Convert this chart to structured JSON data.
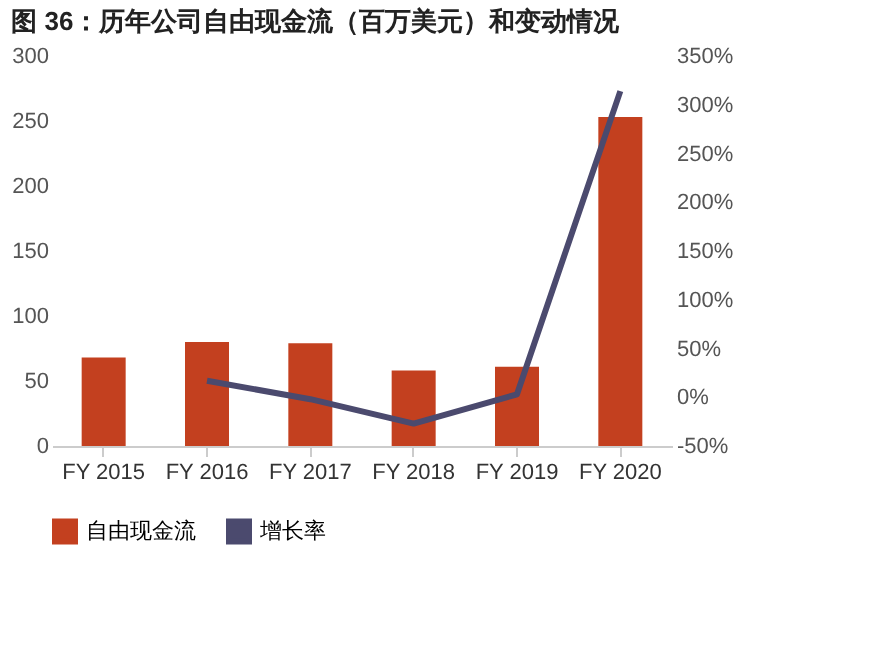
{
  "chart_data": {
    "type": "bar",
    "title": "图 36：历年公司自由现金流（百万美元）和变动情况",
    "categories": [
      "FY 2015",
      "FY 2016",
      "FY 2017",
      "FY 2018",
      "FY 2019",
      "FY 2020"
    ],
    "series": [
      {
        "name": "自由现金流",
        "type": "bar",
        "color": "#c3401f",
        "values": [
          68,
          80,
          79,
          58,
          61,
          253
        ]
      },
      {
        "name": "增长率",
        "type": "line",
        "axis": "y2",
        "color": "#4b4a6e",
        "values": [
          null,
          17,
          -2,
          -27,
          3,
          314
        ]
      }
    ],
    "ylim": [
      0,
      300
    ],
    "yticks": [
      0,
      50,
      100,
      150,
      200,
      250,
      300
    ],
    "y2lim": [
      -50,
      350
    ],
    "y2ticks": [
      {
        "value": -50,
        "label": "-50%"
      },
      {
        "value": 0,
        "label": "0%"
      },
      {
        "value": 50,
        "label": "50%"
      },
      {
        "value": 100,
        "label": "100%"
      },
      {
        "value": 150,
        "label": "150%"
      },
      {
        "value": 200,
        "label": "200%"
      },
      {
        "value": 250,
        "label": "250%"
      },
      {
        "value": 300,
        "label": "300%"
      },
      {
        "value": 350,
        "label": "350%"
      }
    ],
    "grid": false,
    "legend": "bottom",
    "marker": "none",
    "line_style": "solid"
  }
}
